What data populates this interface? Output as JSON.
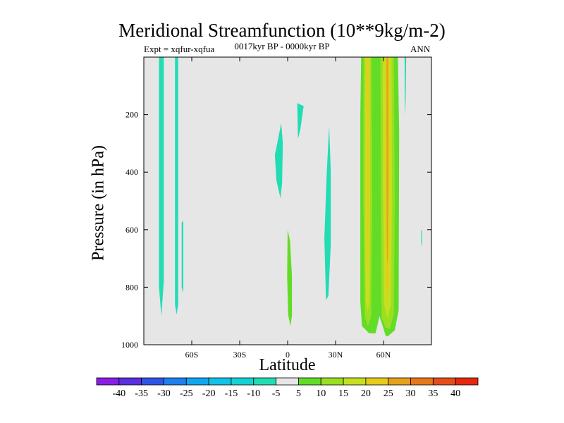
{
  "chart_data": {
    "type": "contour",
    "title": "Meridional Streamfunction (10**9kg/m-2)",
    "subtitle": "0017kyr BP - 0000kyr BP",
    "experiment_label": "Expt = xqfur-xqfua",
    "season": "ANN",
    "xlabel": "Latitude",
    "ylabel": "Pressure (in hPa)",
    "xlim": [
      -90,
      90
    ],
    "ylim": [
      0,
      1000
    ],
    "y_inverted": true,
    "x_ticks": [
      {
        "value": -60,
        "label": "60S"
      },
      {
        "value": -30,
        "label": "30S"
      },
      {
        "value": 0,
        "label": "0"
      },
      {
        "value": 30,
        "label": "30N"
      },
      {
        "value": 60,
        "label": "60N"
      }
    ],
    "y_ticks": [
      200,
      400,
      600,
      800,
      1000
    ],
    "colorbar": {
      "levels": [
        "-40",
        "-35",
        "-30",
        "-25",
        "-20",
        "-15",
        "-10",
        "-5",
        "5",
        "10",
        "15",
        "20",
        "25",
        "30",
        "35",
        "40"
      ],
      "colors": [
        "#8a1ee6",
        "#5a2fe0",
        "#2f55e6",
        "#1f7ff0",
        "#10a7f0",
        "#12c2e8",
        "#14d2d4",
        "#22dcb4",
        "#e6e6e6",
        "#62dc26",
        "#9adf22",
        "#c4e020",
        "#e6cb1a",
        "#e6a11a",
        "#e6781a",
        "#e64d1a",
        "#e6280f"
      ]
    },
    "background_color": "#e6e6e6",
    "regions": [
      {
        "label": "-5 to -10 band near 80S",
        "color": "#22dcb4",
        "points": [
          [
            -80.5,
            0
          ],
          [
            -77.5,
            0
          ],
          [
            -77.5,
            780
          ],
          [
            -79,
            900
          ],
          [
            -80.5,
            800
          ]
        ]
      },
      {
        "label": "-5 to -10 band near 70S",
        "color": "#22dcb4",
        "points": [
          [
            -70.5,
            0
          ],
          [
            -68.5,
            0
          ],
          [
            -68.5,
            860
          ],
          [
            -69.5,
            895
          ],
          [
            -70.5,
            860
          ]
        ]
      },
      {
        "label": "-5 to -10 small patch 66S",
        "color": "#22dcb4",
        "points": [
          [
            -66.3,
            575
          ],
          [
            -65.3,
            570
          ],
          [
            -65.3,
            820
          ],
          [
            -66.3,
            800
          ]
        ]
      },
      {
        "label": "-5 to -10 patch 8S",
        "color": "#22dcb4",
        "points": [
          [
            -8,
            340
          ],
          [
            -4,
            230
          ],
          [
            -3,
            300
          ],
          [
            -3.5,
            440
          ],
          [
            -4.5,
            490
          ],
          [
            -7,
            430
          ]
        ]
      },
      {
        "label": "-5 to -10 patch 8N",
        "color": "#22dcb4",
        "points": [
          [
            6,
            160
          ],
          [
            10,
            170
          ],
          [
            8,
            250
          ],
          [
            6.5,
            285
          ]
        ]
      },
      {
        "label": "-5 to -10 patch 25N",
        "color": "#22dcb4",
        "points": [
          [
            23,
            630
          ],
          [
            24.5,
            400
          ],
          [
            26,
            240
          ],
          [
            27,
            400
          ],
          [
            27,
            650
          ],
          [
            25.5,
            830
          ],
          [
            24,
            845
          ]
        ]
      },
      {
        "label": "-5 to -10 thin patch 73N",
        "color": "#22dcb4",
        "points": [
          [
            73.2,
            0
          ],
          [
            74.2,
            0
          ],
          [
            73.8,
            150
          ],
          [
            73.3,
            205
          ]
        ]
      },
      {
        "label": "-5 to -10 tiny patch 84N",
        "color": "#22dcb4",
        "points": [
          [
            83.5,
            605
          ],
          [
            84,
            600
          ],
          [
            84,
            660
          ],
          [
            83.5,
            645
          ]
        ]
      },
      {
        "label": "5 to 10 patch 3N",
        "color": "#62dc26",
        "points": [
          [
            0,
            600
          ],
          [
            1.5,
            640
          ],
          [
            2.7,
            760
          ],
          [
            2.7,
            900
          ],
          [
            1.7,
            935
          ],
          [
            0.3,
            895
          ],
          [
            -0.3,
            760
          ]
        ]
      },
      {
        "label": "5 to 10 outer envelope 45N-70N",
        "color": "#62dc26",
        "points": [
          [
            46,
            0
          ],
          [
            54,
            0
          ],
          [
            56,
            0
          ],
          [
            69,
            0
          ],
          [
            69.8,
            260
          ],
          [
            69.5,
            880
          ],
          [
            67,
            950
          ],
          [
            62.8,
            970
          ],
          [
            61.4,
            970
          ],
          [
            59.2,
            930
          ],
          [
            57.5,
            900
          ],
          [
            55,
            960
          ],
          [
            51,
            960
          ],
          [
            46.5,
            935
          ],
          [
            45.5,
            850
          ],
          [
            45.5,
            200
          ]
        ]
      },
      {
        "label": "10 to 15 eastern column",
        "color": "#9adf22",
        "points": [
          [
            47.5,
            0
          ],
          [
            52.5,
            0
          ],
          [
            53,
            500
          ],
          [
            52.3,
            900
          ],
          [
            50.3,
            935
          ],
          [
            48.3,
            905
          ],
          [
            47.4,
            500
          ]
        ]
      },
      {
        "label": "10 to 15 western column",
        "color": "#9adf22",
        "points": [
          [
            58,
            0
          ],
          [
            66.5,
            0
          ],
          [
            67,
            500
          ],
          [
            66.5,
            890
          ],
          [
            64,
            945
          ],
          [
            61.2,
            940
          ],
          [
            58.8,
            905
          ],
          [
            58.3,
            500
          ]
        ]
      },
      {
        "label": "15 to 20 column 50N",
        "color": "#c4e020",
        "points": [
          [
            48.6,
            0
          ],
          [
            51.5,
            0
          ],
          [
            51.7,
            420
          ],
          [
            51.3,
            850
          ],
          [
            50,
            885
          ],
          [
            48.8,
            850
          ],
          [
            48.4,
            420
          ]
        ]
      },
      {
        "label": "15 to 20 column 62N",
        "color": "#c4e020",
        "points": [
          [
            59.5,
            0
          ],
          [
            65,
            0
          ],
          [
            65.3,
            450
          ],
          [
            64.8,
            855
          ],
          [
            62.6,
            910
          ],
          [
            60.4,
            860
          ],
          [
            59.6,
            450
          ]
        ]
      },
      {
        "label": "20 to 25 core 50N",
        "color": "#e6cb1a",
        "points": [
          [
            49.3,
            0
          ],
          [
            51,
            0
          ],
          [
            51,
            300
          ],
          [
            50.5,
            700
          ],
          [
            49.8,
            760
          ],
          [
            49.4,
            300
          ]
        ]
      },
      {
        "label": "20 to 25 core 62N",
        "color": "#e6cb1a",
        "points": [
          [
            61.2,
            0
          ],
          [
            63.5,
            0
          ],
          [
            63.8,
            350
          ],
          [
            63.3,
            800
          ],
          [
            62.4,
            835
          ],
          [
            61.5,
            790
          ],
          [
            61.2,
            350
          ]
        ]
      },
      {
        "label": "25 to 30 core 62N",
        "color": "#e6a11a",
        "points": [
          [
            61.9,
            0
          ],
          [
            62.9,
            0
          ],
          [
            63,
            420
          ],
          [
            62.7,
            700
          ],
          [
            62.3,
            720
          ],
          [
            62,
            600
          ]
        ]
      }
    ]
  }
}
